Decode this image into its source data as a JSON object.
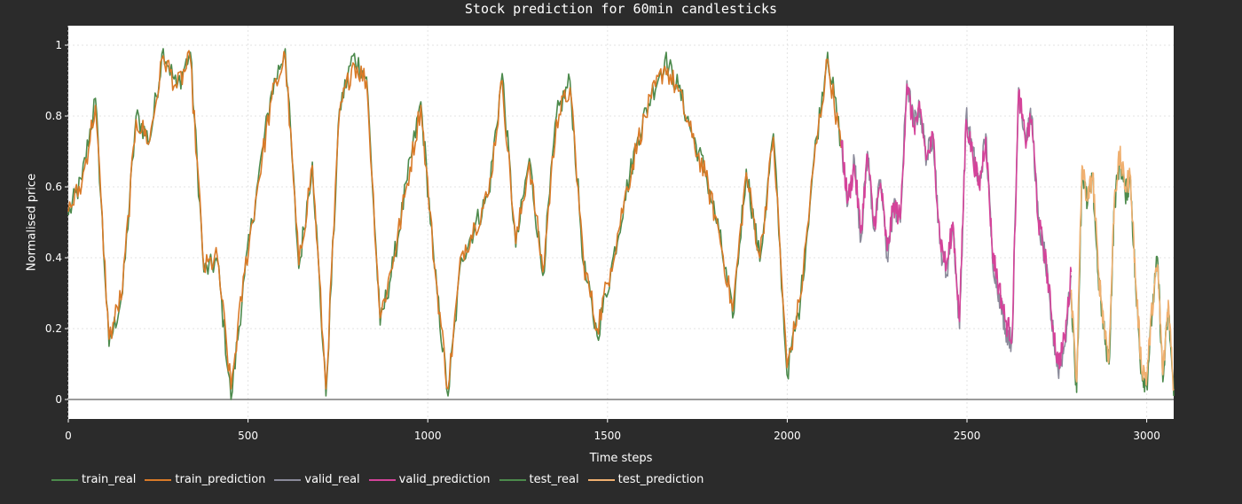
{
  "chart_data": {
    "type": "line",
    "title": "Stock prediction for 60min candlesticks",
    "xlabel": "Time steps",
    "ylabel": "Normalised price",
    "xlim": [
      0,
      3075
    ],
    "ylim": [
      -0.055,
      1.055
    ],
    "xticks": [
      0,
      500,
      1000,
      1500,
      2000,
      2500,
      3000
    ],
    "yticks": [
      0,
      0.2,
      0.4,
      0.6,
      0.8,
      1
    ],
    "ytick_labels": [
      "0",
      "0.2",
      "0.4",
      "0.6",
      "0.8",
      "1"
    ],
    "grid": true,
    "legend_position": "bottom-left",
    "hline": 0,
    "series": [
      {
        "name": "train_real",
        "color": "#4c8a4c",
        "x_range": [
          0,
          2150
        ],
        "values": [
          0.52,
          0.62,
          0.85,
          0.15,
          0.3,
          0.8,
          0.73,
          0.99,
          0.88,
          0.98,
          0.36,
          0.39,
          0.0,
          0.35,
          0.62,
          0.87,
          0.99,
          0.37,
          0.67,
          0.01,
          0.82,
          0.97,
          0.91,
          0.21,
          0.39,
          0.62,
          0.84,
          0.37,
          0.01,
          0.4,
          0.49,
          0.58,
          0.92,
          0.43,
          0.68,
          0.35,
          0.8,
          0.9,
          0.38,
          0.18,
          0.36,
          0.56,
          0.74,
          0.86,
          0.96,
          0.88,
          0.75,
          0.64,
          0.47,
          0.23,
          0.65,
          0.39,
          0.75,
          0.07,
          0.28,
          0.68,
          0.98,
          0.72
        ]
      },
      {
        "name": "train_prediction",
        "color": "#d97a28",
        "x_range": [
          0,
          2150
        ],
        "values": [
          0.53,
          0.61,
          0.83,
          0.17,
          0.31,
          0.79,
          0.73,
          0.97,
          0.88,
          0.96,
          0.37,
          0.4,
          0.03,
          0.36,
          0.61,
          0.85,
          0.97,
          0.38,
          0.66,
          0.03,
          0.81,
          0.95,
          0.9,
          0.23,
          0.4,
          0.61,
          0.83,
          0.38,
          0.03,
          0.41,
          0.49,
          0.58,
          0.9,
          0.44,
          0.67,
          0.36,
          0.79,
          0.88,
          0.39,
          0.2,
          0.37,
          0.56,
          0.73,
          0.85,
          0.94,
          0.87,
          0.74,
          0.63,
          0.47,
          0.25,
          0.64,
          0.4,
          0.74,
          0.09,
          0.29,
          0.67,
          0.96,
          0.71
        ]
      },
      {
        "name": "valid_real",
        "color": "#8a8a9a",
        "x_range": [
          2150,
          2790
        ],
        "values": [
          0.72,
          0.55,
          0.68,
          0.45,
          0.7,
          0.48,
          0.62,
          0.4,
          0.55,
          0.5,
          0.9,
          0.78,
          0.82,
          0.68,
          0.75,
          0.44,
          0.35,
          0.5,
          0.2,
          0.8,
          0.7,
          0.6,
          0.75,
          0.4,
          0.3,
          0.2,
          0.16,
          0.88,
          0.74,
          0.8,
          0.5,
          0.4,
          0.22,
          0.08,
          0.15,
          0.35
        ]
      },
      {
        "name": "valid_prediction",
        "color": "#d4439a",
        "x_range": [
          2150,
          2790
        ],
        "values": [
          0.73,
          0.56,
          0.66,
          0.47,
          0.69,
          0.49,
          0.61,
          0.42,
          0.55,
          0.51,
          0.89,
          0.77,
          0.81,
          0.68,
          0.74,
          0.46,
          0.37,
          0.5,
          0.22,
          0.79,
          0.69,
          0.6,
          0.74,
          0.42,
          0.32,
          0.22,
          0.18,
          0.87,
          0.73,
          0.79,
          0.5,
          0.41,
          0.24,
          0.1,
          0.17,
          0.36
        ]
      },
      {
        "name": "test_real",
        "color": "#4c8a4c",
        "x_range": [
          2790,
          3075
        ],
        "values": [
          0.3,
          0.02,
          0.65,
          0.55,
          0.62,
          0.35,
          0.2,
          0.1,
          0.55,
          0.68,
          0.58,
          0.62,
          0.3,
          0.08,
          0.04,
          0.25,
          0.4,
          0.05,
          0.26,
          0.01
        ]
      },
      {
        "name": "test_prediction",
        "color": "#f0b070",
        "x_range": [
          2790,
          3075
        ],
        "values": [
          0.31,
          0.05,
          0.66,
          0.56,
          0.64,
          0.37,
          0.22,
          0.12,
          0.57,
          0.69,
          0.6,
          0.63,
          0.32,
          0.1,
          0.06,
          0.26,
          0.38,
          0.07,
          0.28,
          0.03
        ]
      }
    ]
  }
}
